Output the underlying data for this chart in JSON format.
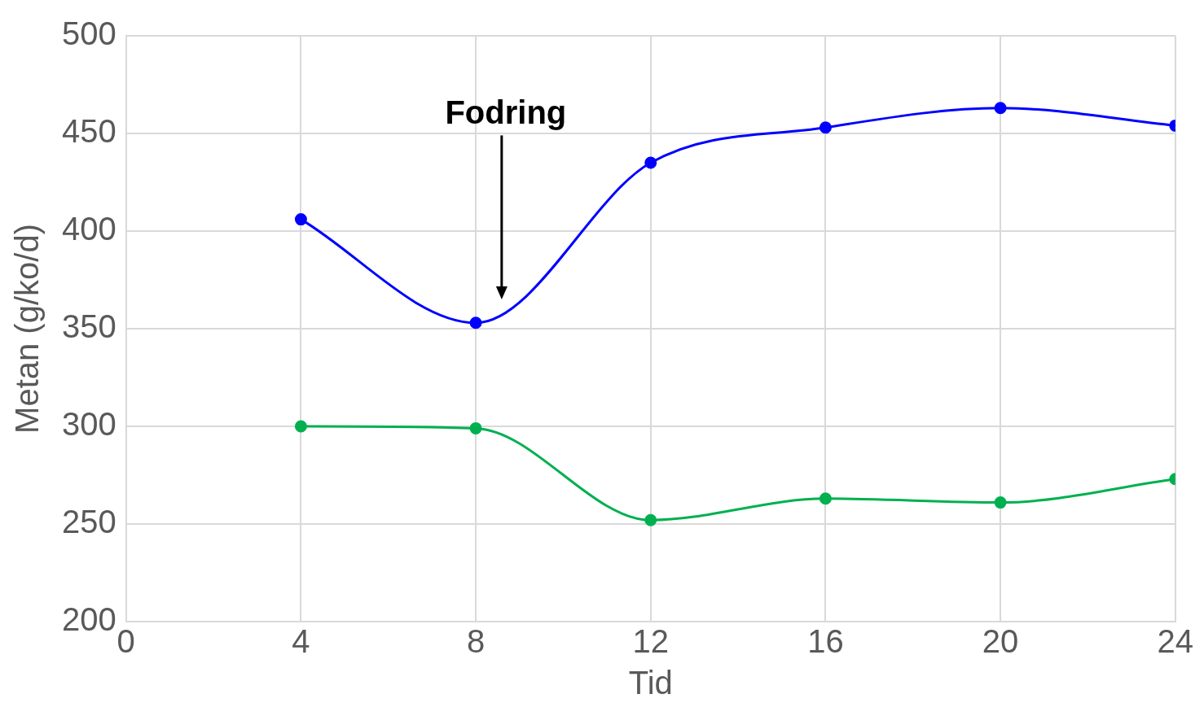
{
  "chart_data": {
    "type": "line",
    "xlabel": "Tid",
    "ylabel": "Metan (g/ko/d)",
    "x": [
      4,
      8,
      12,
      16,
      20,
      24
    ],
    "series": [
      {
        "color": "#0000ff",
        "values": [
          406,
          353,
          435,
          453,
          463,
          454
        ]
      },
      {
        "color": "#00b050",
        "values": [
          300,
          299,
          252,
          263,
          261,
          273
        ]
      }
    ],
    "xlim": [
      0,
      24
    ],
    "xticks": [
      0,
      4,
      8,
      12,
      16,
      20,
      24
    ],
    "ylim": [
      200,
      500
    ],
    "yticks": [
      200,
      250,
      300,
      350,
      400,
      450,
      500
    ],
    "grid": true,
    "legend": false,
    "marker": "circle",
    "line_style": "solid",
    "annotations": [
      "Fodring"
    ]
  }
}
